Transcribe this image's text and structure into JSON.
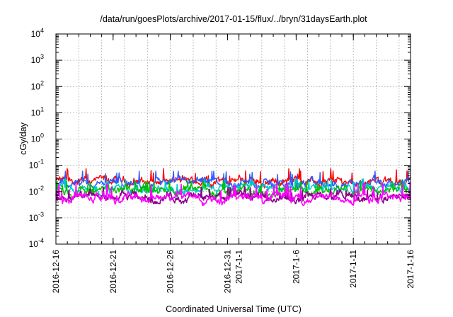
{
  "chart_data": {
    "type": "line",
    "title": "/data/run/goesPlots/archive/2017-01-15/flux/../bryn/31daysEarth.plot",
    "xlabel": "Coordinated Universal Time (UTC)",
    "ylabel": "cGy/day",
    "yscale": "log",
    "ylim": [
      0.0001,
      10000
    ],
    "xlim": [
      "2016-12-16",
      "2017-01-16"
    ],
    "grid": true,
    "x_ticks": [
      "2016-12-16",
      "2016-12-21",
      "2016-12-26",
      "2016-12-31",
      "2017-1-1",
      "2017-1-6",
      "2017-1-11",
      "2017-1-16"
    ],
    "x_tick_dates": [
      "2016-12-16",
      "2016-12-21",
      "2016-12-26",
      "2016-12-31",
      "2017-01-01",
      "2017-01-06",
      "2017-01-11",
      "2017-01-16"
    ],
    "y_ticks": [
      {
        "base": "10",
        "exp": "-4"
      },
      {
        "base": "10",
        "exp": "-3"
      },
      {
        "base": "10",
        "exp": "-2"
      },
      {
        "base": "10",
        "exp": "-1"
      },
      {
        "base": "10",
        "exp": "0"
      },
      {
        "base": "10",
        "exp": "1"
      },
      {
        "base": "10",
        "exp": "2"
      },
      {
        "base": "10",
        "exp": "3"
      },
      {
        "base": "10",
        "exp": "4"
      }
    ],
    "series": [
      {
        "color": "#ff0000",
        "typical": 0.025,
        "min": 0.013,
        "max": 0.075
      },
      {
        "color": "#2a5cff",
        "typical": 0.02,
        "min": 0.011,
        "max": 0.06
      },
      {
        "color": "#00c8c8",
        "typical": 0.013,
        "min": 0.007,
        "max": 0.03
      },
      {
        "color": "#00c000",
        "typical": 0.011,
        "min": 0.006,
        "max": 0.025
      },
      {
        "color": "#8b008b",
        "typical": 0.006,
        "min": 0.0035,
        "max": 0.015
      },
      {
        "color": "#ff00ff",
        "typical": 0.006,
        "min": 0.003,
        "max": 0.02
      }
    ]
  }
}
